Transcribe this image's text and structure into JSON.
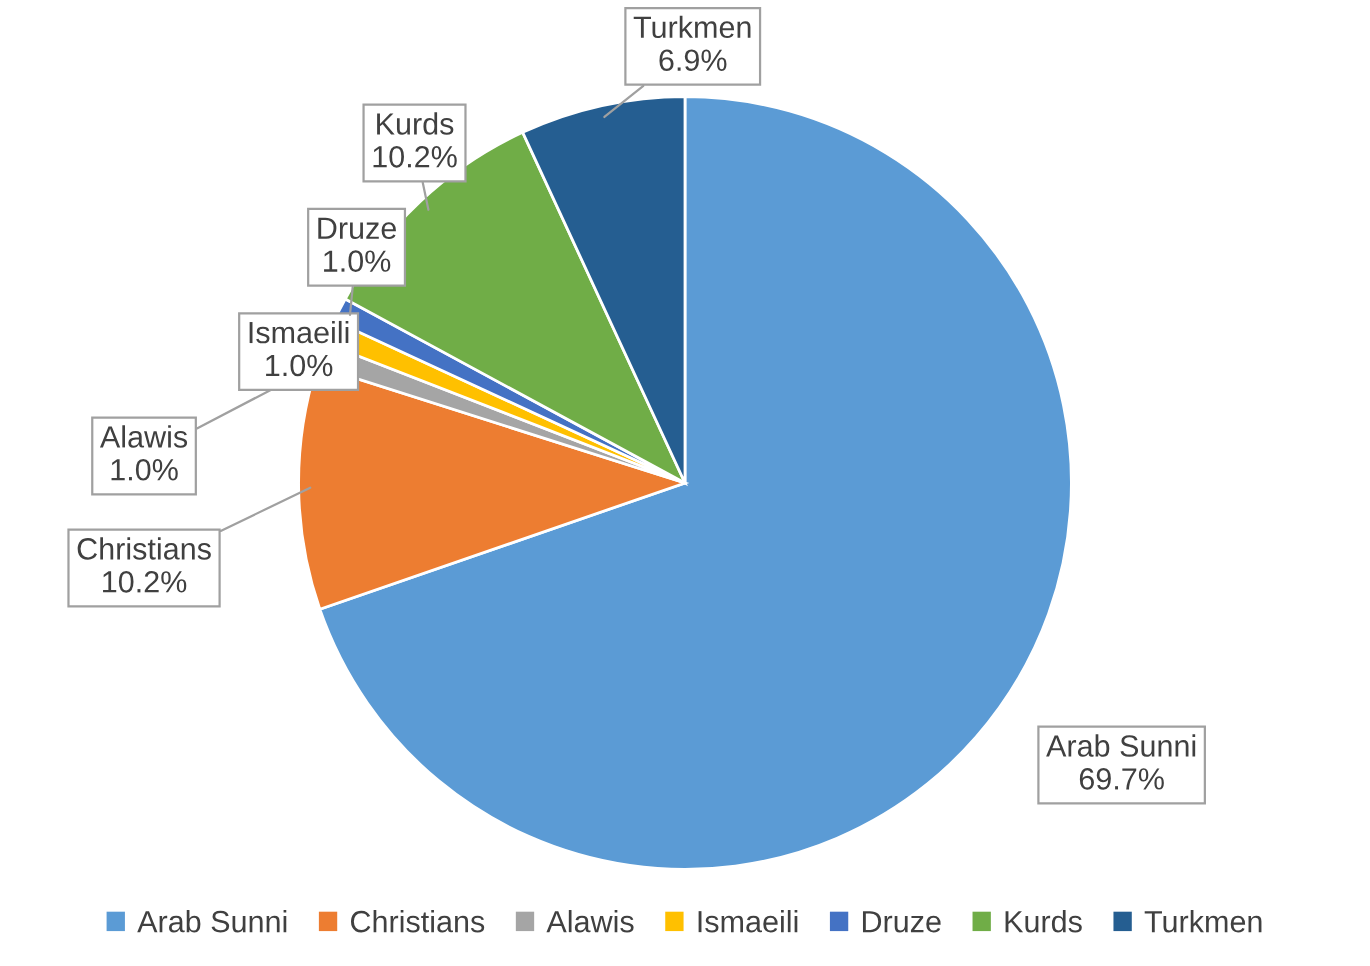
{
  "chart_data": {
    "type": "pie",
    "categories": [
      "Arab Sunni",
      "Christians",
      "Alawis",
      "Ismaeili",
      "Druze",
      "Kurds",
      "Turkmen"
    ],
    "values": [
      69.7,
      10.2,
      1.0,
      1.0,
      1.0,
      10.2,
      6.9
    ],
    "colors": [
      "#5b9bd5",
      "#ed7d31",
      "#a5a5a5",
      "#ffc000",
      "#4472c4",
      "#70ad47",
      "#255e91"
    ],
    "value_labels": [
      "69.7%",
      "10.2%",
      "1.0%",
      "1.0%",
      "1.0%",
      "10.2%",
      "6.9%"
    ],
    "legend": "bottom"
  }
}
